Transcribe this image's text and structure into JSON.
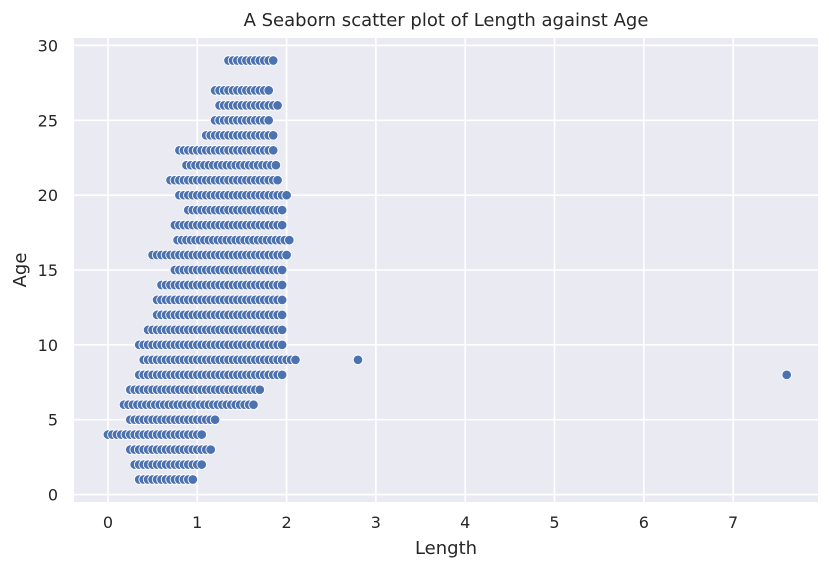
{
  "chart_data": {
    "type": "scatter",
    "title": "A Seaborn scatter plot of Length against Age",
    "xlabel": "Length",
    "ylabel": "Age",
    "xlim": [
      -0.38,
      7.95
    ],
    "ylim": [
      -0.5,
      30.5
    ],
    "xticks": [
      0,
      1,
      2,
      3,
      4,
      5,
      6,
      7
    ],
    "yticks": [
      0,
      5,
      10,
      15,
      20,
      25,
      30
    ],
    "xtick_labels": [
      "0",
      "1",
      "2",
      "3",
      "4",
      "5",
      "6",
      "7"
    ],
    "ytick_labels": [
      "0",
      "5",
      "10",
      "15",
      "20",
      "25",
      "30"
    ],
    "grid": true,
    "legend": "none",
    "colors": {
      "background": "#eaeaf2",
      "grid": "#ffffff",
      "marker": "#4c72b0",
      "marker_edge": "#ffffff",
      "text": "#262626"
    },
    "age_ranges": [
      [
        1,
        0.35,
        0.95
      ],
      [
        2,
        0.3,
        1.05
      ],
      [
        3,
        0.25,
        1.15
      ],
      [
        4,
        0.0,
        1.05
      ],
      [
        5,
        0.25,
        1.2
      ],
      [
        6,
        0.18,
        1.65
      ],
      [
        7,
        0.25,
        1.7
      ],
      [
        8,
        0.35,
        1.95
      ],
      [
        9,
        0.4,
        2.1
      ],
      [
        10,
        0.35,
        1.95
      ],
      [
        11,
        0.45,
        1.95
      ],
      [
        12,
        0.55,
        1.95
      ],
      [
        13,
        0.55,
        1.95
      ],
      [
        14,
        0.6,
        1.95
      ],
      [
        15,
        0.75,
        1.95
      ],
      [
        16,
        0.5,
        2.0
      ],
      [
        17,
        0.78,
        2.05
      ],
      [
        18,
        0.75,
        1.95
      ],
      [
        19,
        0.9,
        1.95
      ],
      [
        20,
        0.8,
        2.0
      ],
      [
        21,
        0.7,
        1.9
      ],
      [
        22,
        0.88,
        1.9
      ],
      [
        23,
        0.8,
        1.85
      ],
      [
        24,
        1.1,
        1.85
      ],
      [
        25,
        1.2,
        1.8
      ],
      [
        26,
        1.25,
        1.9
      ],
      [
        27,
        1.2,
        1.8
      ],
      [
        29,
        1.35,
        1.85
      ]
    ],
    "outliers": [
      {
        "x": 2.8,
        "y": 9
      },
      {
        "x": 7.6,
        "y": 8
      }
    ]
  }
}
